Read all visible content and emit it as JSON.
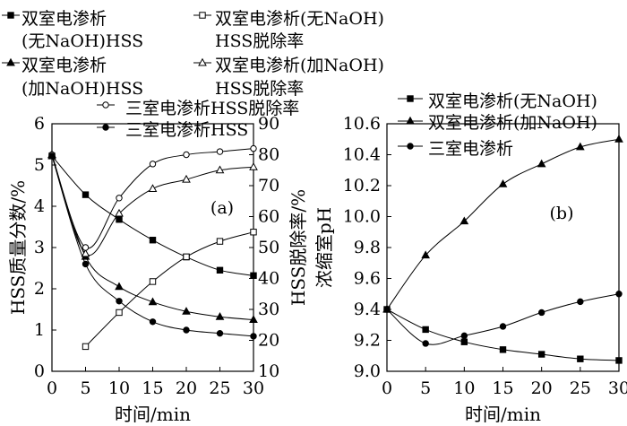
{
  "chart_data": [
    {
      "type": "line",
      "panel_label": "(a)",
      "xlabel": "时间/min",
      "ylabel": "HSS质量分数/%",
      "y2label": "HSS脱除率/%",
      "xlim": [
        0,
        30
      ],
      "ylim": [
        0,
        6
      ],
      "y2lim": [
        10,
        90
      ],
      "xticks": [
        0,
        5,
        10,
        15,
        20,
        25,
        30
      ],
      "yticks": [
        0,
        1,
        2,
        3,
        4,
        5,
        6
      ],
      "y2ticks": [
        10,
        20,
        30,
        40,
        50,
        60,
        70,
        80,
        90
      ],
      "grid": false,
      "series": [
        {
          "name": "双室电渗析(无NaOH)HSS",
          "axis": "left",
          "marker": "square-filled",
          "x": [
            0,
            5,
            10,
            15,
            20,
            25,
            30
          ],
          "y": [
            5.22,
            4.28,
            3.68,
            3.18,
            2.77,
            2.45,
            2.32
          ]
        },
        {
          "name": "双室电渗析(无NaOH)HSS脱除率",
          "axis": "right",
          "marker": "square-open",
          "x": [
            5,
            10,
            15,
            20,
            25,
            30
          ],
          "y": [
            18,
            29,
            39,
            47,
            52,
            55
          ]
        },
        {
          "name": "双室电渗析(加NaOH)HSS",
          "axis": "left",
          "marker": "triangle-filled",
          "x": [
            0,
            5,
            10,
            15,
            20,
            25,
            30
          ],
          "y": [
            5.22,
            2.78,
            2.05,
            1.68,
            1.45,
            1.32,
            1.25
          ]
        },
        {
          "name": "双室电渗析(加NaOH)HSS脱除率",
          "axis": "right",
          "marker": "triangle-open",
          "x": [
            0,
            5,
            10,
            15,
            20,
            25,
            30
          ],
          "y": [
            80,
            48,
            61,
            69,
            72,
            75,
            76
          ]
        },
        {
          "name": "三室电渗析HSS脱除率",
          "axis": "right",
          "marker": "circle-open",
          "x": [
            0,
            5,
            10,
            15,
            20,
            25,
            30
          ],
          "y": [
            80,
            50,
            66,
            77,
            80,
            81,
            82
          ]
        },
        {
          "name": "三室电渗析HSS",
          "axis": "left",
          "marker": "circle-filled",
          "x": [
            0,
            5,
            10,
            15,
            20,
            25,
            30
          ],
          "y": [
            5.22,
            2.6,
            1.7,
            1.2,
            1.0,
            0.92,
            0.85
          ]
        }
      ]
    },
    {
      "type": "line",
      "panel_label": "(b)",
      "xlabel": "时间/min",
      "ylabel": "浓缩室pH",
      "xlim": [
        0,
        30
      ],
      "ylim": [
        9.0,
        10.6
      ],
      "xticks": [
        0,
        5,
        10,
        15,
        20,
        25,
        30
      ],
      "yticks": [
        "9.0",
        "9.2",
        "9.4",
        "9.6",
        "9.8",
        "10.0",
        "10.2",
        "10.4",
        "10.6"
      ],
      "grid": false,
      "series": [
        {
          "name": "双室电渗析(无NaOH)",
          "marker": "square-filled",
          "x": [
            0,
            5,
            10,
            15,
            20,
            25,
            30
          ],
          "y": [
            9.4,
            9.27,
            9.19,
            9.14,
            9.11,
            9.08,
            9.07
          ]
        },
        {
          "name": "双室电渗析(加NaOH)",
          "marker": "triangle-filled",
          "x": [
            0,
            5,
            10,
            15,
            20,
            25,
            30
          ],
          "y": [
            9.4,
            9.75,
            9.97,
            10.21,
            10.34,
            10.45,
            10.5
          ]
        },
        {
          "name": "三室电渗析",
          "marker": "circle-filled",
          "x": [
            0,
            5,
            10,
            15,
            20,
            25,
            30
          ],
          "y": [
            9.4,
            9.18,
            9.23,
            9.29,
            9.38,
            9.45,
            9.5
          ]
        }
      ]
    }
  ]
}
